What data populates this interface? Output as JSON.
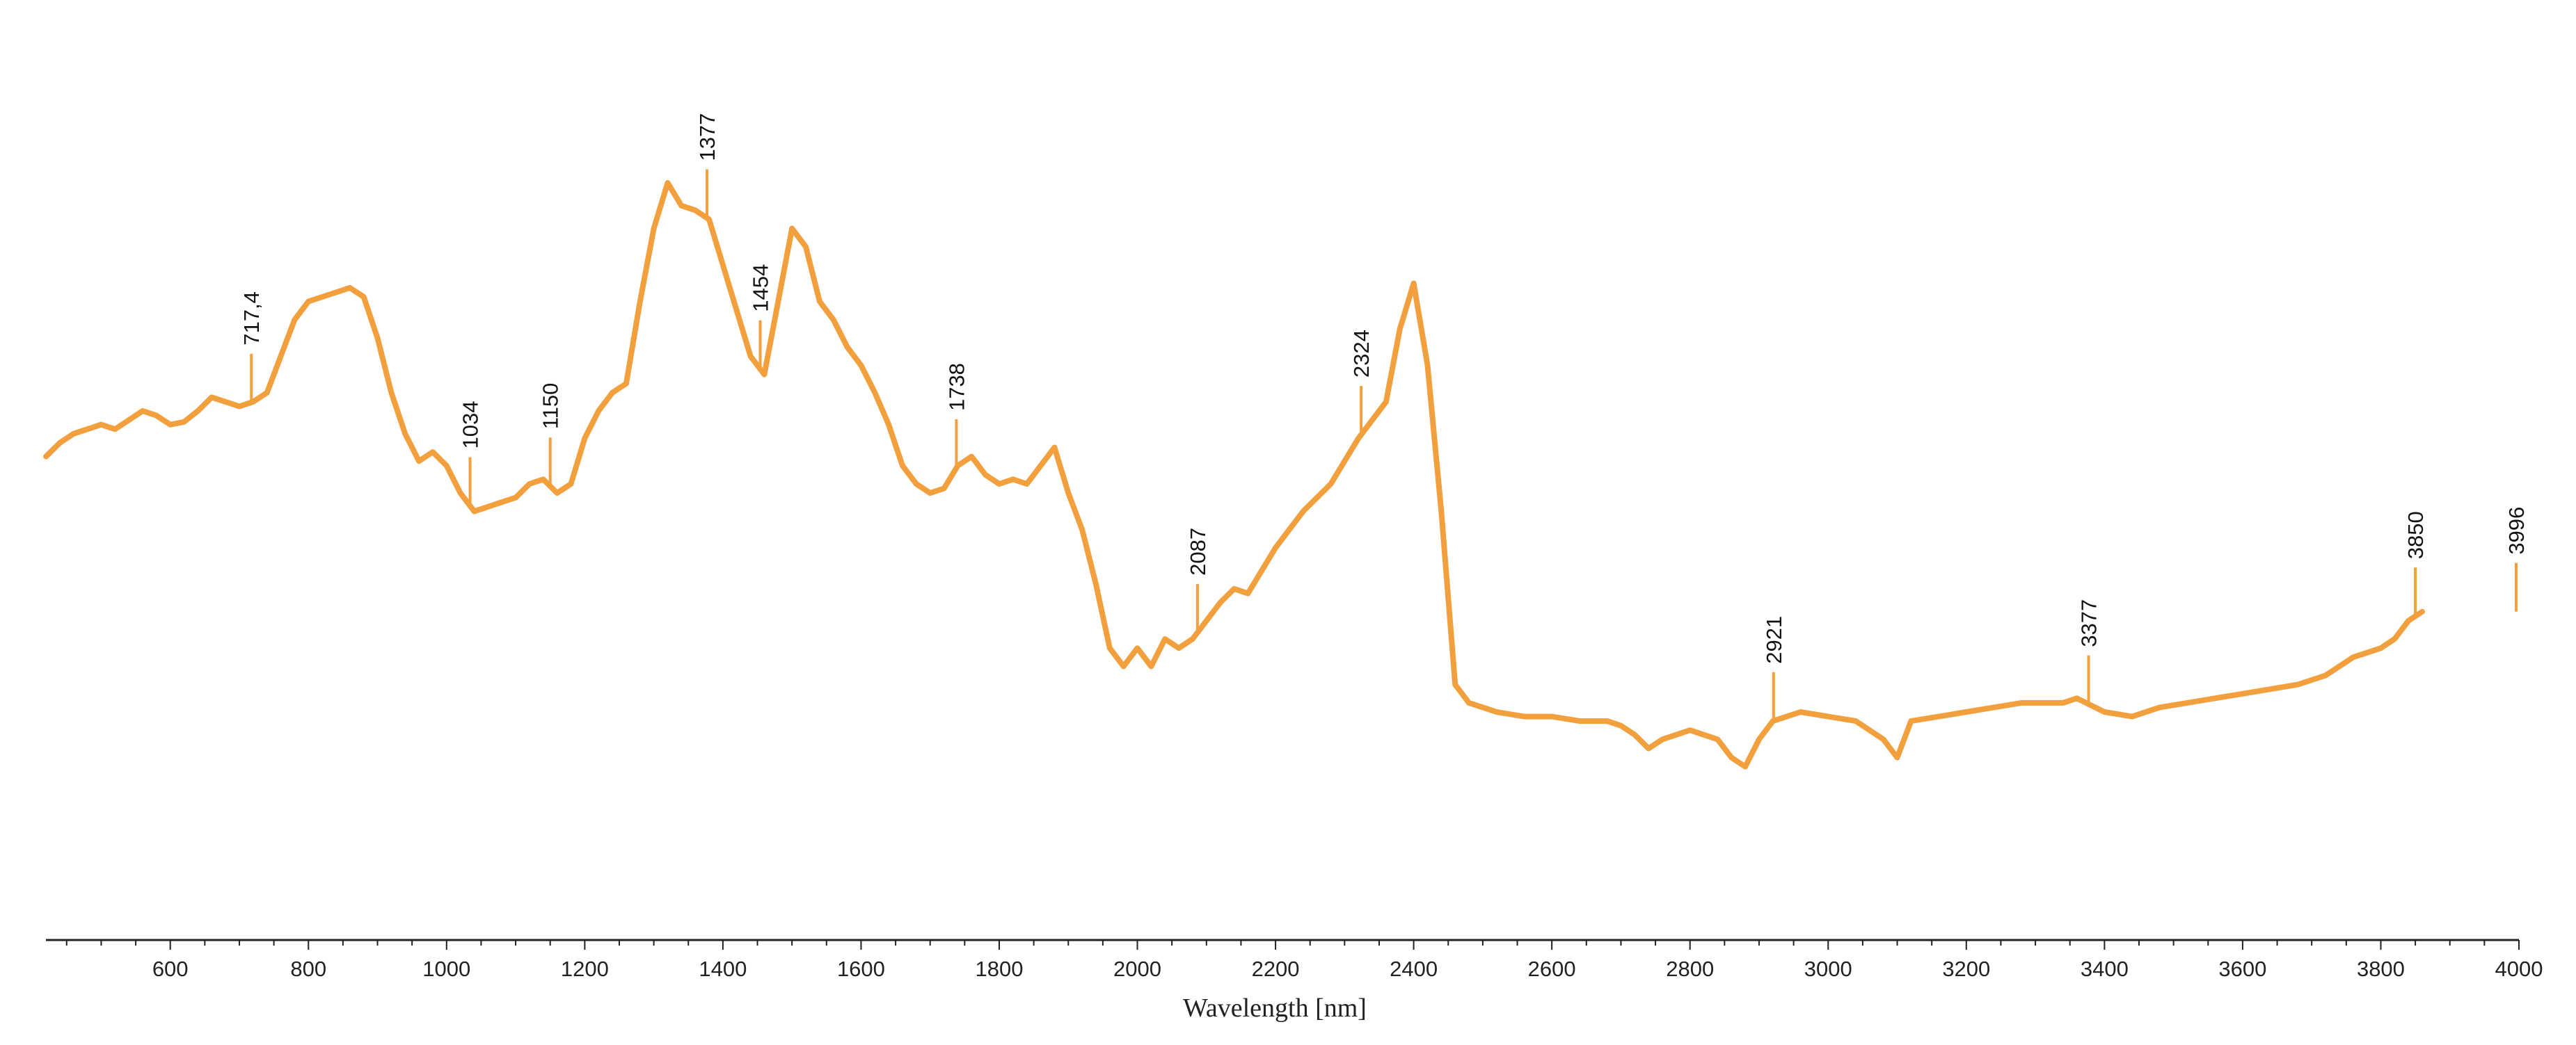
{
  "chart_data": {
    "type": "line",
    "title": "",
    "xlabel": "Wavelength [nm]",
    "ylabel": "",
    "xlim": [
      420,
      4000
    ],
    "ylim": [
      0,
      1
    ],
    "x_ticks": [
      600,
      800,
      1000,
      1200,
      1400,
      1600,
      1800,
      2000,
      2200,
      2400,
      2600,
      2800,
      3000,
      3200,
      3400,
      3600,
      3800,
      4000
    ],
    "grid": false,
    "legend": "none",
    "line_color": "#f2a03d",
    "series": [
      {
        "values": [
          [
            420,
            0.53
          ],
          [
            440,
            0.545
          ],
          [
            460,
            0.555
          ],
          [
            480,
            0.56
          ],
          [
            500,
            0.565
          ],
          [
            520,
            0.56
          ],
          [
            540,
            0.57
          ],
          [
            560,
            0.58
          ],
          [
            580,
            0.575
          ],
          [
            600,
            0.565
          ],
          [
            620,
            0.568
          ],
          [
            640,
            0.58
          ],
          [
            660,
            0.595
          ],
          [
            680,
            0.59
          ],
          [
            700,
            0.585
          ],
          [
            720,
            0.59
          ],
          [
            740,
            0.6
          ],
          [
            760,
            0.64
          ],
          [
            780,
            0.68
          ],
          [
            800,
            0.7
          ],
          [
            820,
            0.705
          ],
          [
            840,
            0.71
          ],
          [
            860,
            0.715
          ],
          [
            880,
            0.705
          ],
          [
            900,
            0.66
          ],
          [
            920,
            0.6
          ],
          [
            940,
            0.555
          ],
          [
            960,
            0.525
          ],
          [
            980,
            0.535
          ],
          [
            1000,
            0.52
          ],
          [
            1020,
            0.49
          ],
          [
            1040,
            0.47
          ],
          [
            1060,
            0.475
          ],
          [
            1080,
            0.48
          ],
          [
            1100,
            0.485
          ],
          [
            1120,
            0.5
          ],
          [
            1140,
            0.505
          ],
          [
            1160,
            0.49
          ],
          [
            1180,
            0.5
          ],
          [
            1200,
            0.55
          ],
          [
            1220,
            0.58
          ],
          [
            1240,
            0.6
          ],
          [
            1260,
            0.61
          ],
          [
            1280,
            0.7
          ],
          [
            1300,
            0.78
          ],
          [
            1320,
            0.83
          ],
          [
            1340,
            0.805
          ],
          [
            1360,
            0.8
          ],
          [
            1380,
            0.79
          ],
          [
            1400,
            0.74
          ],
          [
            1420,
            0.69
          ],
          [
            1440,
            0.64
          ],
          [
            1460,
            0.62
          ],
          [
            1480,
            0.7
          ],
          [
            1500,
            0.78
          ],
          [
            1520,
            0.76
          ],
          [
            1540,
            0.7
          ],
          [
            1560,
            0.68
          ],
          [
            1580,
            0.65
          ],
          [
            1600,
            0.63
          ],
          [
            1620,
            0.6
          ],
          [
            1640,
            0.565
          ],
          [
            1660,
            0.52
          ],
          [
            1680,
            0.5
          ],
          [
            1700,
            0.49
          ],
          [
            1720,
            0.495
          ],
          [
            1740,
            0.52
          ],
          [
            1760,
            0.53
          ],
          [
            1780,
            0.51
          ],
          [
            1800,
            0.5
          ],
          [
            1820,
            0.505
          ],
          [
            1840,
            0.5
          ],
          [
            1860,
            0.52
          ],
          [
            1880,
            0.54
          ],
          [
            1900,
            0.49
          ],
          [
            1920,
            0.45
          ],
          [
            1940,
            0.39
          ],
          [
            1960,
            0.32
          ],
          [
            1980,
            0.3
          ],
          [
            2000,
            0.32
          ],
          [
            2020,
            0.3
          ],
          [
            2040,
            0.33
          ],
          [
            2060,
            0.32
          ],
          [
            2080,
            0.33
          ],
          [
            2100,
            0.35
          ],
          [
            2120,
            0.37
          ],
          [
            2140,
            0.385
          ],
          [
            2160,
            0.38
          ],
          [
            2200,
            0.43
          ],
          [
            2240,
            0.47
          ],
          [
            2280,
            0.5
          ],
          [
            2320,
            0.55
          ],
          [
            2360,
            0.59
          ],
          [
            2380,
            0.67
          ],
          [
            2400,
            0.72
          ],
          [
            2420,
            0.63
          ],
          [
            2440,
            0.47
          ],
          [
            2460,
            0.28
          ],
          [
            2480,
            0.26
          ],
          [
            2500,
            0.255
          ],
          [
            2520,
            0.25
          ],
          [
            2560,
            0.245
          ],
          [
            2600,
            0.245
          ],
          [
            2640,
            0.24
          ],
          [
            2680,
            0.24
          ],
          [
            2700,
            0.235
          ],
          [
            2720,
            0.225
          ],
          [
            2740,
            0.21
          ],
          [
            2760,
            0.22
          ],
          [
            2780,
            0.225
          ],
          [
            2800,
            0.23
          ],
          [
            2820,
            0.225
          ],
          [
            2840,
            0.22
          ],
          [
            2860,
            0.2
          ],
          [
            2880,
            0.19
          ],
          [
            2900,
            0.22
          ],
          [
            2920,
            0.24
          ],
          [
            2960,
            0.25
          ],
          [
            3000,
            0.245
          ],
          [
            3040,
            0.24
          ],
          [
            3080,
            0.22
          ],
          [
            3100,
            0.2
          ],
          [
            3120,
            0.24
          ],
          [
            3160,
            0.245
          ],
          [
            3200,
            0.25
          ],
          [
            3240,
            0.255
          ],
          [
            3280,
            0.26
          ],
          [
            3320,
            0.26
          ],
          [
            3340,
            0.26
          ],
          [
            3360,
            0.265
          ],
          [
            3400,
            0.25
          ],
          [
            3440,
            0.245
          ],
          [
            3480,
            0.255
          ],
          [
            3520,
            0.26
          ],
          [
            3560,
            0.265
          ],
          [
            3600,
            0.27
          ],
          [
            3640,
            0.275
          ],
          [
            3680,
            0.28
          ],
          [
            3720,
            0.29
          ],
          [
            3760,
            0.31
          ],
          [
            3800,
            0.32
          ],
          [
            3820,
            0.33
          ],
          [
            3840,
            0.35
          ],
          [
            3860,
            0.36
          ]
        ]
      }
    ],
    "peaks": [
      {
        "x": 717.4,
        "label": "717,4"
      },
      {
        "x": 1034,
        "label": "1034"
      },
      {
        "x": 1150,
        "label": "1150"
      },
      {
        "x": 1377,
        "label": "1377"
      },
      {
        "x": 1454,
        "label": "1454"
      },
      {
        "x": 1738,
        "label": "1738"
      },
      {
        "x": 2087,
        "label": "2087"
      },
      {
        "x": 2324,
        "label": "2324"
      },
      {
        "x": 2921,
        "label": "2921"
      },
      {
        "x": 3377,
        "label": "3377"
      },
      {
        "x": 3850,
        "label": "3850"
      },
      {
        "x": 3996,
        "label": "3996"
      }
    ]
  }
}
